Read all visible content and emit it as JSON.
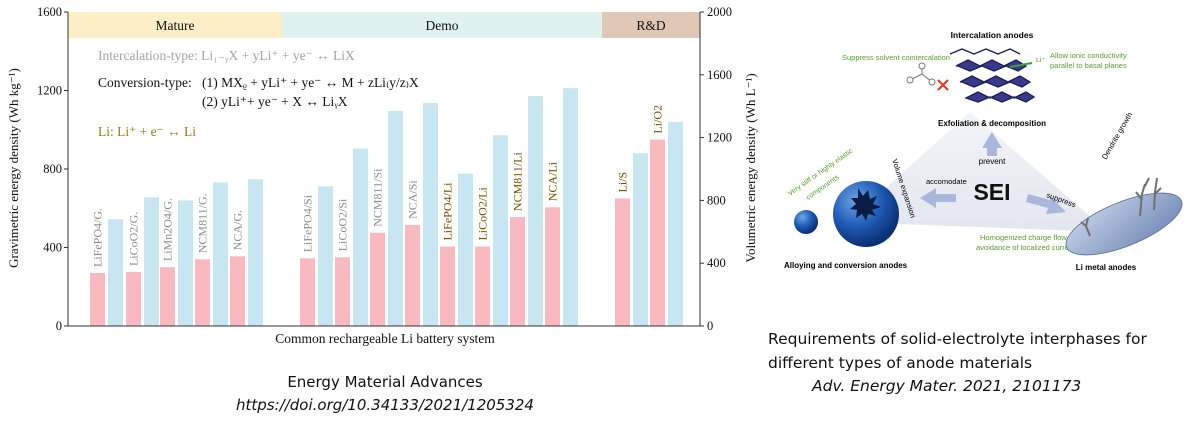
{
  "chart_data": {
    "type": "bar",
    "xlabel": "Common rechargeable Li battery system",
    "ylabel_left": "Gravimetric energy density (Wh kg⁻¹)",
    "ylabel_right": "Volumetric energy density (Wh L⁻¹)",
    "ylim_left": [
      0,
      1600
    ],
    "ylim_right": [
      0,
      2000
    ],
    "yticks_left": [
      "0",
      "400",
      "800",
      "1200",
      "1600"
    ],
    "yticks_right": [
      "0",
      "400",
      "800",
      "1200",
      "1600",
      "2000"
    ],
    "groups": [
      {
        "label": "Mature",
        "color": "#fcefc8"
      },
      {
        "label": "Demo",
        "color": "#dff1f0"
      },
      {
        "label": "R&D",
        "color": "#dfc8b6"
      }
    ],
    "categories": [
      "LiFePO4/G.",
      "LiCoO2/G.",
      "LiMn2O4/G.",
      "NCM811/G.",
      "NCA/G.",
      "LiFePO4/Si",
      "LiCoO2/Si",
      "NCM811/Si",
      "NCA/Si",
      "LiFePO4/Li",
      "LiCoO2/Li",
      "NCM811/Li",
      "NCA/Li",
      "Li/S",
      "Li/O2"
    ],
    "series": [
      {
        "axis": "left",
        "color": "#f8b9c0",
        "values": [
          270,
          275,
          300,
          340,
          355,
          345,
          350,
          475,
          515,
          405,
          405,
          555,
          605,
          650,
          950
        ]
      },
      {
        "axis": "right",
        "color": "#c8e6f2",
        "values": [
          680,
          820,
          800,
          915,
          935,
          890,
          1130,
          1370,
          1420,
          970,
          1215,
          1465,
          1515,
          1100,
          1300
        ]
      }
    ],
    "annotations": {
      "intercalation": "Intercalation-type: Li₁₋ᵧX + yLi⁺ + ye⁻ ↔ LiX",
      "conversion_label": "Conversion-type:",
      "conversion_1": "(1) MXᵨ + yLi⁺ + ye⁻ ↔ M + zLi₍y/z₎X",
      "conversion_2": "(2) yLi⁺+ ye⁻ + X ↔ LiᵧX",
      "li_metal": "Li: Li⁺ + e⁻ ↔ Li"
    },
    "colors": {
      "axis": "#333333",
      "annotation_gray": "#a3a3a3",
      "annotation_gold": "#9b7a17",
      "label_dark": "#7a4e00"
    }
  },
  "captions": {
    "left_journal": "Energy Material Advances",
    "left_doi": "https://doi.org/10.34133/2021/1205324",
    "right_line1": "Requirements of solid-electrolyte interphases for",
    "right_line2": "different types of anode materials",
    "right_ref": "Adv. Energy Mater. 2021, 2101173"
  },
  "sei_figure": {
    "center": "SEI",
    "intercalation_title": "Intercalation anodes",
    "suppress_cointercalation": "Suppress solvent cointercalation",
    "allow_conductivity_1": "Allow ionic conductivity",
    "allow_conductivity_2": "parallel to basal planes",
    "li_plus": "Li⁺",
    "exfoliation": "Exfoliation & decomposition",
    "prevent": "prevent",
    "very_stiff_1": "Very stiff or highly elastic",
    "very_stiff_2": "components",
    "accomodate": "accomodate",
    "volume_expansion": "Volume expansion",
    "suppress": "suppress",
    "dendrite": "Dendrite growth",
    "homogenized_1": "Homogenized charge flow and",
    "homogenized_2": "avoidance of localized currents",
    "alloying": "Alloying and conversion anodes",
    "li_metal_anodes": "Li metal anodes"
  }
}
